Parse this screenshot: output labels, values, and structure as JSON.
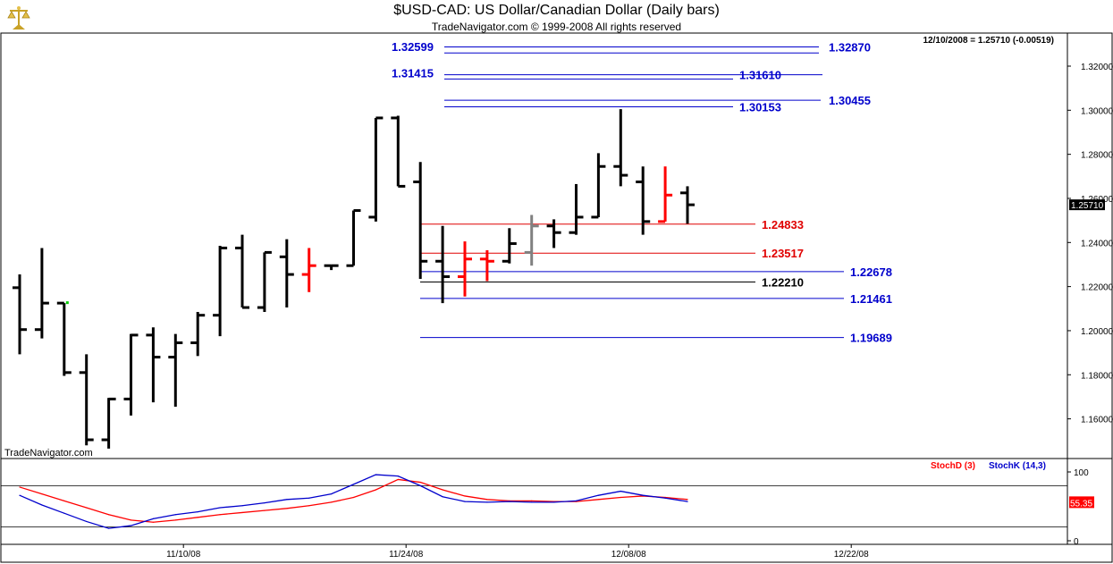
{
  "header": {
    "title": "$USD-CAD:  US Dollar/Canadian Dollar  (Daily bars)",
    "subtitle": "TradeNavigator.com © 1999-2008 All rights reserved",
    "info": "12/10/2008 = 1.25710 (-0.00519)"
  },
  "watermark": "TradeNavigator.com",
  "logo_icon": "gold-scale-logo-icon",
  "colors": {
    "up_bar": "#000000",
    "red_bar": "#ff0000",
    "gray_bar": "#808080",
    "blue_level": "#0000cc",
    "red_level": "#e00000",
    "stoch_d": "#ff0000",
    "stoch_k": "#0000cc"
  },
  "chart_data": [
    {
      "type": "ohlc",
      "title": "$USD-CAD:  US Dollar/Canadian Dollar  (Daily bars)",
      "ylim": [
        1.142,
        1.335
      ],
      "ytick_labels": [
        "1.16000",
        "1.18000",
        "1.20000",
        "1.22000",
        "1.24000",
        "1.26000",
        "1.28000",
        "1.30000",
        "1.32000"
      ],
      "ytick_values": [
        1.16,
        1.18,
        1.2,
        1.22,
        1.24,
        1.26,
        1.28,
        1.3,
        1.32
      ],
      "xtick_labels": [
        "11/10/08",
        "11/24/08",
        "12/08/08",
        "12/22/08"
      ],
      "xtick_index": [
        8,
        18,
        28,
        38
      ],
      "last_value_label": "1.25710",
      "bars": [
        {
          "date": "10/27/08",
          "o": 1.2195,
          "h": 1.2255,
          "l": 1.1893,
          "c": 1.2005,
          "color": "black"
        },
        {
          "date": "10/28/08",
          "o": 1.2005,
          "h": 1.2375,
          "l": 1.1965,
          "c": 1.2125,
          "color": "black"
        },
        {
          "date": "10/29/08",
          "o": 1.2125,
          "h": 1.2125,
          "l": 1.1795,
          "c": 1.181,
          "color": "black"
        },
        {
          "date": "10/30/08",
          "o": 1.181,
          "h": 1.1893,
          "l": 1.148,
          "c": 1.1505,
          "color": "black"
        },
        {
          "date": "10/31/08",
          "o": 1.1505,
          "h": 1.1695,
          "l": 1.1465,
          "c": 1.169,
          "color": "black"
        },
        {
          "date": "11/03/08",
          "o": 1.169,
          "h": 1.1985,
          "l": 1.1615,
          "c": 1.198,
          "color": "black"
        },
        {
          "date": "11/04/08",
          "o": 1.198,
          "h": 1.2015,
          "l": 1.1675,
          "c": 1.188,
          "color": "black"
        },
        {
          "date": "11/05/08",
          "o": 1.188,
          "h": 1.1985,
          "l": 1.1655,
          "c": 1.1945,
          "color": "black"
        },
        {
          "date": "11/06/08",
          "o": 1.1945,
          "h": 1.2085,
          "l": 1.1885,
          "c": 1.207,
          "color": "black"
        },
        {
          "date": "11/07/08",
          "o": 1.207,
          "h": 1.2385,
          "l": 1.1975,
          "c": 1.2375,
          "color": "black"
        },
        {
          "date": "11/10/08",
          "o": 1.2375,
          "h": 1.2435,
          "l": 1.2105,
          "c": 1.2105,
          "color": "black"
        },
        {
          "date": "11/11/08",
          "o": 1.2105,
          "h": 1.2355,
          "l": 1.2085,
          "c": 1.2355,
          "color": "black"
        },
        {
          "date": "11/12/08",
          "o": 1.2335,
          "h": 1.2415,
          "l": 1.2105,
          "c": 1.2255,
          "color": "black"
        },
        {
          "date": "11/13/08",
          "o": 1.2255,
          "h": 1.2375,
          "l": 1.2175,
          "c": 1.2295,
          "color": "red"
        },
        {
          "date": "11/14/08",
          "o": 1.2295,
          "h": 1.2295,
          "l": 1.2275,
          "c": 1.2295,
          "color": "black"
        },
        {
          "date": "11/17/08",
          "o": 1.2295,
          "h": 1.2545,
          "l": 1.2295,
          "c": 1.2545,
          "color": "black"
        },
        {
          "date": "11/18/08",
          "o": 1.2515,
          "h": 1.2965,
          "l": 1.2495,
          "c": 1.2965,
          "color": "black"
        },
        {
          "date": "11/19/08",
          "o": 1.2965,
          "h": 1.2975,
          "l": 1.2655,
          "c": 1.2655,
          "color": "black"
        },
        {
          "date": "11/20/08",
          "o": 1.2675,
          "h": 1.2765,
          "l": 1.2235,
          "c": 1.2315,
          "color": "black"
        },
        {
          "date": "11/21/08",
          "o": 1.2315,
          "h": 1.2475,
          "l": 1.2125,
          "c": 1.2245,
          "color": "black"
        },
        {
          "date": "11/24/08",
          "o": 1.2245,
          "h": 1.2405,
          "l": 1.2155,
          "c": 1.2325,
          "color": "red"
        },
        {
          "date": "11/25/08",
          "o": 1.2325,
          "h": 1.2365,
          "l": 1.2225,
          "c": 1.2315,
          "color": "red"
        },
        {
          "date": "11/26/08",
          "o": 1.2315,
          "h": 1.2465,
          "l": 1.2305,
          "c": 1.2395,
          "color": "black"
        },
        {
          "date": "11/27/08",
          "o": 1.2355,
          "h": 1.2525,
          "l": 1.2295,
          "c": 1.2475,
          "color": "gray"
        },
        {
          "date": "11/28/08",
          "o": 1.2475,
          "h": 1.2505,
          "l": 1.2375,
          "c": 1.2445,
          "color": "black"
        },
        {
          "date": "12/01/08",
          "o": 1.2445,
          "h": 1.2665,
          "l": 1.2435,
          "c": 1.2515,
          "color": "black"
        },
        {
          "date": "12/02/08",
          "o": 1.2515,
          "h": 1.2805,
          "l": 1.2515,
          "c": 1.2745,
          "color": "black"
        },
        {
          "date": "12/03/08",
          "o": 1.2745,
          "h": 1.3005,
          "l": 1.2655,
          "c": 1.2705,
          "color": "black"
        },
        {
          "date": "12/04/08",
          "o": 1.2675,
          "h": 1.2745,
          "l": 1.2435,
          "c": 1.2495,
          "color": "black"
        },
        {
          "date": "12/05/08",
          "o": 1.2495,
          "h": 1.2745,
          "l": 1.2495,
          "c": 1.2615,
          "color": "red"
        },
        {
          "date": "12/08/08",
          "o": 1.2625,
          "h": 1.2655,
          "l": 1.2485,
          "c": 1.2571,
          "color": "black"
        }
      ],
      "levels": [
        {
          "value": 1.3287,
          "label": "1.32870",
          "color": "blue",
          "label_side": "right"
        },
        {
          "value": 1.32599,
          "label": "1.32599",
          "color": "blue",
          "label_side": "left"
        },
        {
          "value": 1.3161,
          "label": "1.31610",
          "color": "blue",
          "label_side": "mid"
        },
        {
          "value": 1.31415,
          "label": "1.31415",
          "color": "blue",
          "label_side": "left"
        },
        {
          "value": 1.30455,
          "label": "1.30455",
          "color": "blue",
          "label_side": "right"
        },
        {
          "value": 1.30153,
          "label": "1.30153",
          "color": "blue",
          "label_side": "mid"
        },
        {
          "value": 1.24833,
          "label": "1.24833",
          "color": "red",
          "label_side": "right"
        },
        {
          "value": 1.23517,
          "label": "1.23517",
          "color": "red",
          "label_side": "right"
        },
        {
          "value": 1.22678,
          "label": "1.22678",
          "color": "blue",
          "label_side": "far"
        },
        {
          "value": 1.2221,
          "label": "1.22210",
          "color": "black",
          "label_side": "right"
        },
        {
          "value": 1.21461,
          "label": "1.21461",
          "color": "blue",
          "label_side": "far"
        },
        {
          "value": 1.19689,
          "label": "1.19689",
          "color": "blue",
          "label_side": "far"
        }
      ]
    },
    {
      "type": "line",
      "title": "",
      "ylim": [
        0,
        100
      ],
      "ytick_labels": [
        "0",
        "100"
      ],
      "ytick_values": [
        0,
        100
      ],
      "ref_lines": [
        80,
        20
      ],
      "last_value_label": "55.35",
      "series": [
        {
          "name": "StochD (3)",
          "color": "red",
          "values": [
            78,
            68,
            58,
            48,
            38,
            30,
            27,
            30,
            34,
            38,
            41,
            44,
            47,
            51,
            56,
            63,
            74,
            89,
            85,
            74,
            65,
            60,
            58,
            58,
            57,
            57,
            60,
            63,
            65,
            63,
            60
          ]
        },
        {
          "name": "StochK (14,3)",
          "color": "blue",
          "values": [
            66,
            52,
            40,
            28,
            18,
            22,
            32,
            38,
            42,
            48,
            51,
            55,
            60,
            62,
            68,
            82,
            96,
            94,
            80,
            64,
            57,
            56,
            57,
            56,
            56,
            58,
            66,
            72,
            66,
            62,
            57
          ]
        }
      ]
    }
  ]
}
